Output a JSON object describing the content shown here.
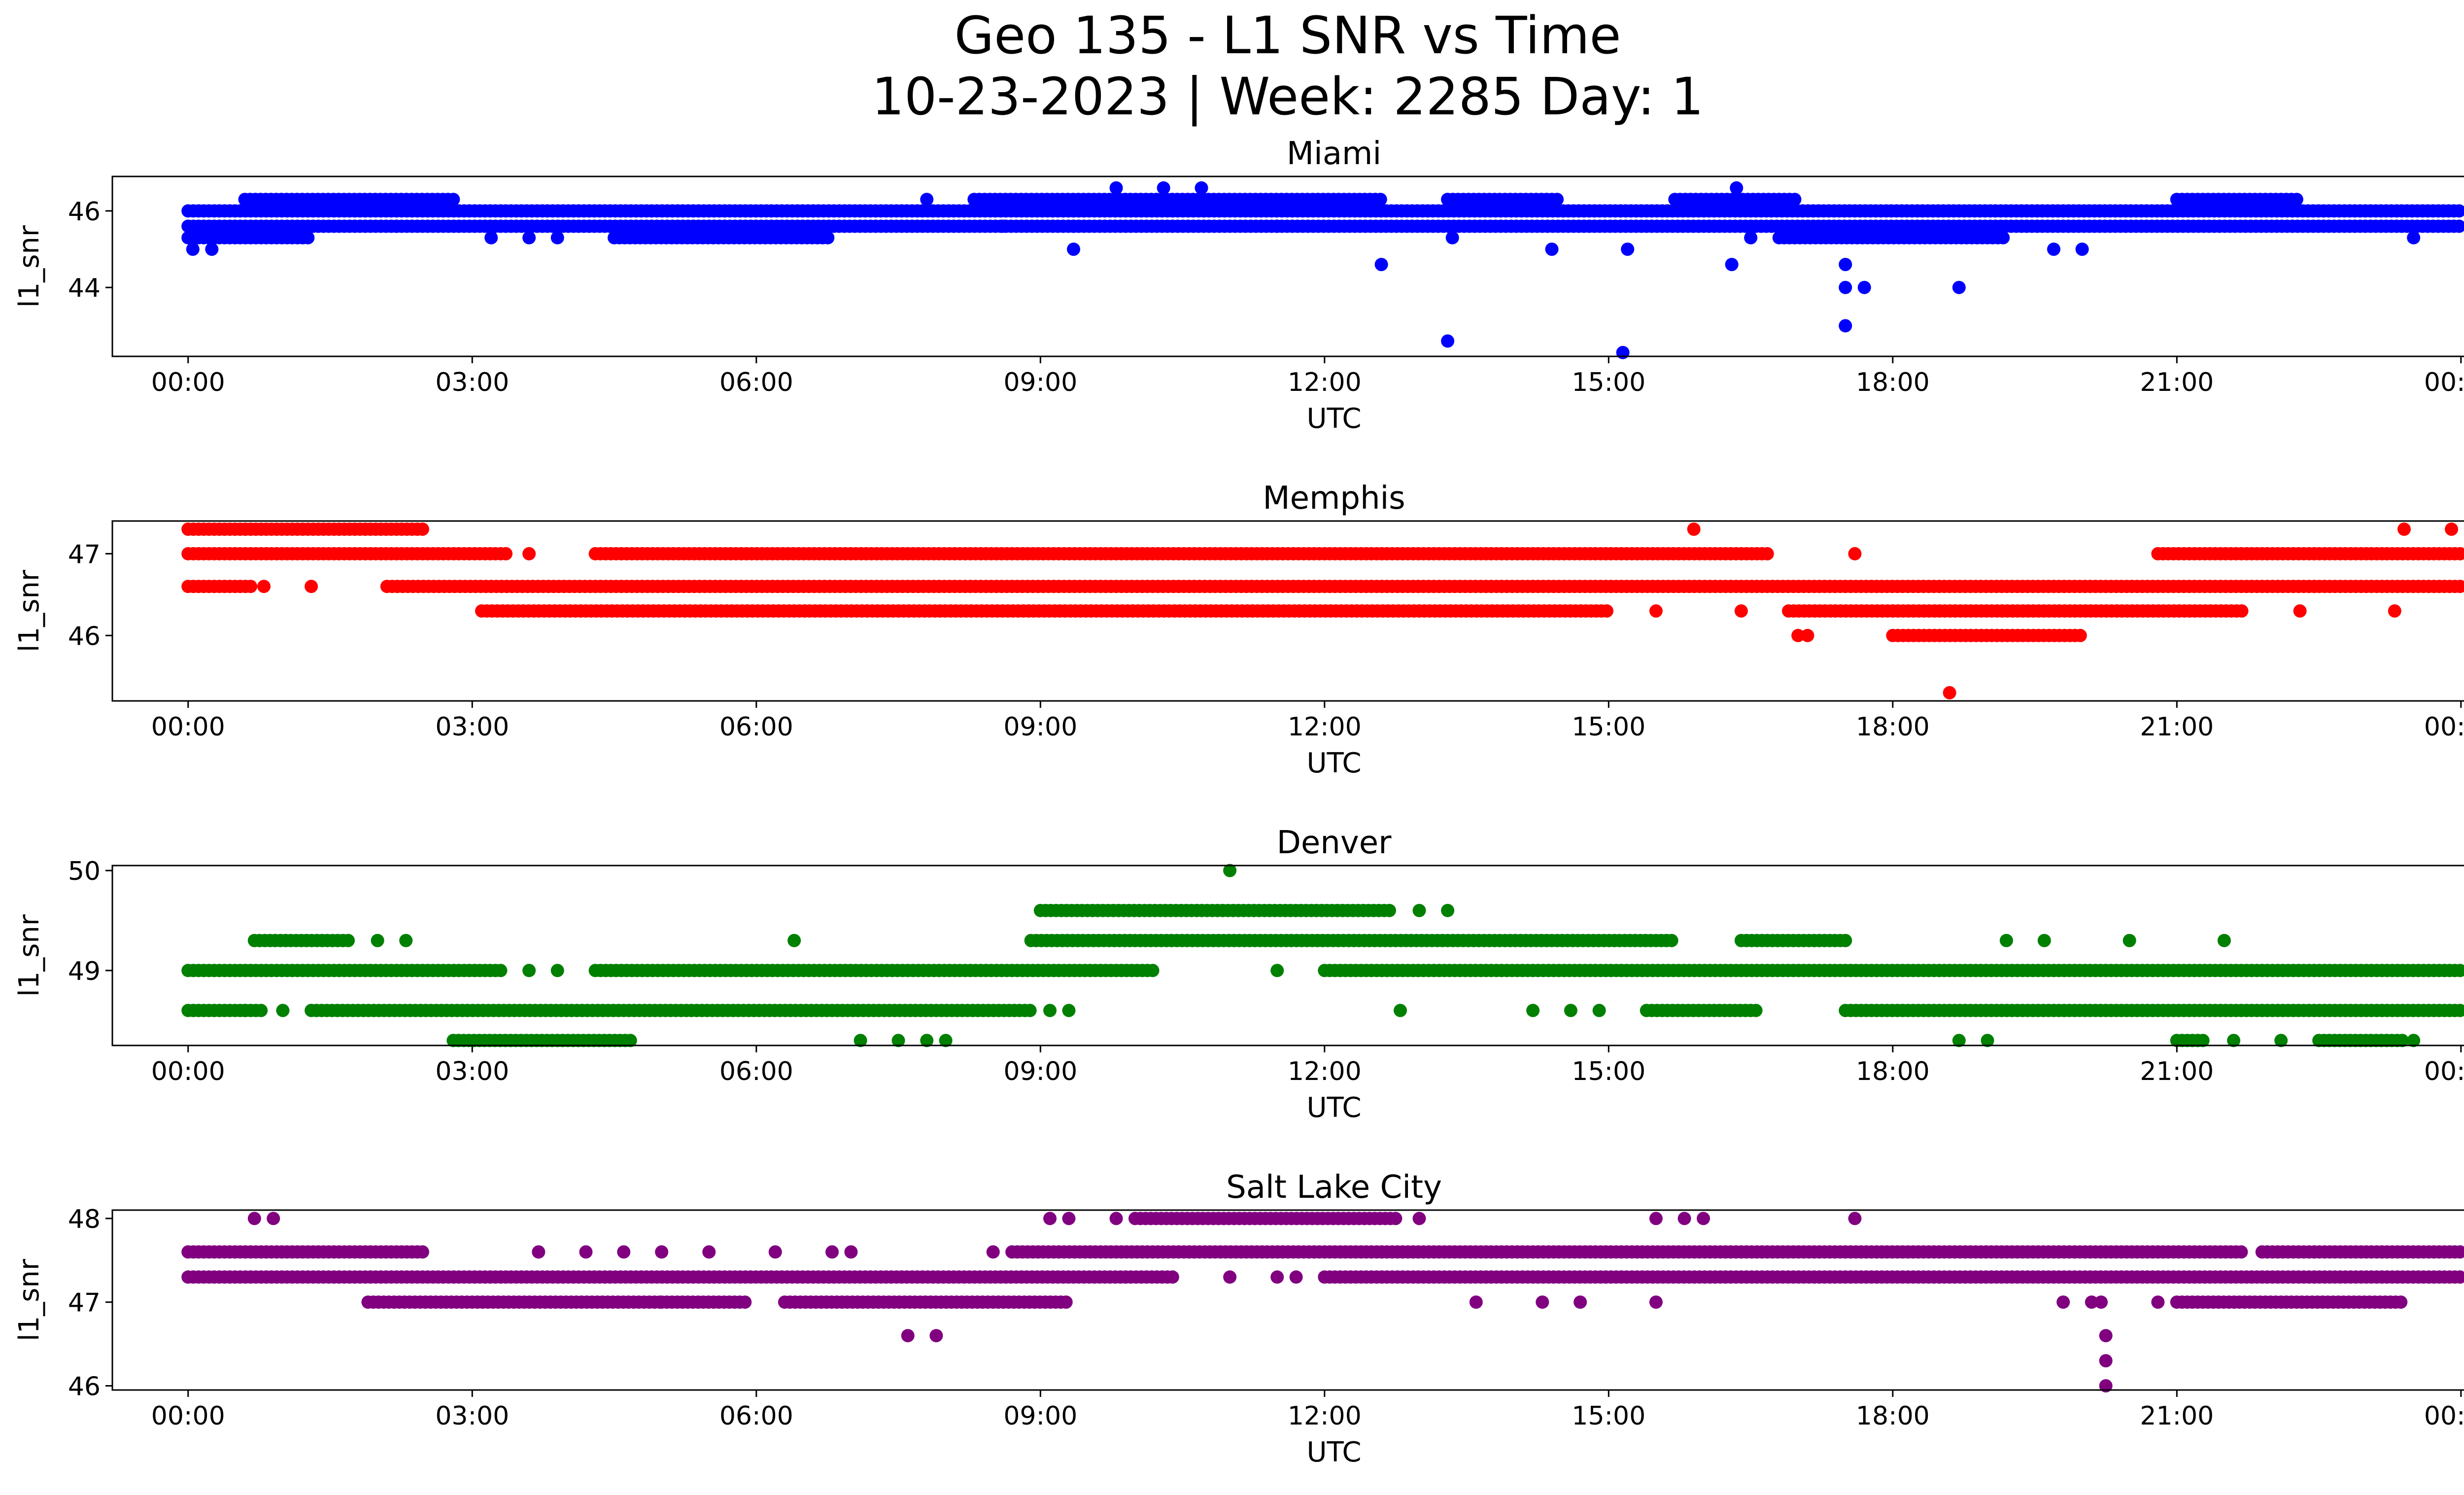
{
  "figure": {
    "title_line1": "Geo 135 - L1 SNR vs Time",
    "title_line2": "10-23-2023 | Week: 2285 Day: 1"
  },
  "chart_data": [
    {
      "type": "scatter",
      "title": "Miami",
      "xlabel": "UTC",
      "ylabel": "l1_snr",
      "color": "#0000ff",
      "xlim": [
        -0.8,
        25.0
      ],
      "ylim": [
        42.2,
        46.9
      ],
      "xticks": [
        0,
        3,
        6,
        9,
        12,
        15,
        18,
        21,
        24
      ],
      "xticklabels": [
        "00:00",
        "03:00",
        "06:00",
        "09:00",
        "12:00",
        "15:00",
        "18:00",
        "21:00",
        "00:00"
      ],
      "yticks": [
        44,
        46
      ],
      "bands": [
        {
          "y": 45.6,
          "from": 0,
          "to": 24
        },
        {
          "y": 46.0,
          "from": 0,
          "to": 24
        },
        {
          "y": 46.3,
          "from": 0.6,
          "to": 2.8
        },
        {
          "y": 46.3,
          "from": 8.3,
          "to": 12.6
        },
        {
          "y": 46.3,
          "from": 13.3,
          "to": 14.5
        },
        {
          "y": 46.3,
          "from": 15.7,
          "to": 17.0
        },
        {
          "y": 46.3,
          "from": 21.0,
          "to": 22.3
        },
        {
          "y": 45.3,
          "from": 0.0,
          "to": 1.3
        },
        {
          "y": 45.3,
          "from": 4.5,
          "to": 6.8
        },
        {
          "y": 45.3,
          "from": 16.8,
          "to": 19.2
        }
      ],
      "points": [
        [
          0.05,
          45.0
        ],
        [
          0.25,
          45.0
        ],
        [
          2.2,
          45.6
        ],
        [
          3.2,
          45.3
        ],
        [
          3.6,
          45.3
        ],
        [
          3.9,
          45.3
        ],
        [
          7.8,
          46.3
        ],
        [
          8.6,
          45.6
        ],
        [
          9.35,
          45.0
        ],
        [
          9.35,
          45.6
        ],
        [
          9.8,
          46.6
        ],
        [
          10.3,
          46.6
        ],
        [
          10.7,
          46.6
        ],
        [
          11.5,
          45.6
        ],
        [
          12.6,
          44.6
        ],
        [
          13.3,
          42.6
        ],
        [
          13.35,
          45.3
        ],
        [
          14.4,
          45.0
        ],
        [
          15.2,
          45.0
        ],
        [
          15.15,
          42.3
        ],
        [
          16.3,
          44.6
        ],
        [
          16.35,
          46.6
        ],
        [
          16.5,
          45.3
        ],
        [
          17.5,
          44.6
        ],
        [
          17.5,
          44.0
        ],
        [
          17.7,
          44.0
        ],
        [
          17.5,
          43.0
        ],
        [
          18.7,
          44.0
        ],
        [
          19.7,
          45.0
        ],
        [
          20.0,
          45.0
        ],
        [
          23.5,
          45.3
        ]
      ]
    },
    {
      "type": "scatter",
      "title": "Memphis",
      "xlabel": "UTC",
      "ylabel": "l1_snr",
      "color": "#ff0000",
      "xlim": [
        -0.8,
        25.0
      ],
      "ylim": [
        45.2,
        47.4
      ],
      "xticks": [
        0,
        3,
        6,
        9,
        12,
        15,
        18,
        21,
        24
      ],
      "xticklabels": [
        "00:00",
        "03:00",
        "06:00",
        "09:00",
        "12:00",
        "15:00",
        "18:00",
        "21:00",
        "00:00"
      ],
      "yticks": [
        46,
        47
      ],
      "bands": [
        {
          "y": 47.0,
          "from": 0,
          "to": 3.4
        },
        {
          "y": 47.0,
          "from": 4.3,
          "to": 16.7
        },
        {
          "y": 47.0,
          "from": 20.8,
          "to": 24
        },
        {
          "y": 47.3,
          "from": 0.0,
          "to": 2.5
        },
        {
          "y": 46.6,
          "from": 0,
          "to": 0.7
        },
        {
          "y": 46.6,
          "from": 2.1,
          "to": 24
        },
        {
          "y": 46.3,
          "from": 3.1,
          "to": 15.0
        },
        {
          "y": 46.3,
          "from": 16.9,
          "to": 21.7
        },
        {
          "y": 46.0,
          "from": 18.0,
          "to": 20.0
        }
      ],
      "points": [
        [
          0.8,
          46.6
        ],
        [
          1.3,
          46.6
        ],
        [
          3.6,
          47.0
        ],
        [
          15.9,
          47.3
        ],
        [
          17.1,
          46.0
        ],
        [
          17.0,
          46.0
        ],
        [
          17.6,
          47.0
        ],
        [
          16.4,
          46.3
        ],
        [
          15.5,
          46.3
        ],
        [
          18.6,
          45.3
        ],
        [
          22.3,
          46.3
        ],
        [
          23.4,
          47.3
        ],
        [
          23.9,
          47.3
        ],
        [
          23.3,
          46.3
        ]
      ]
    },
    {
      "type": "scatter",
      "title": "Denver",
      "xlabel": "UTC",
      "ylabel": "l1_snr",
      "color": "#008000",
      "xlim": [
        -0.8,
        25.0
      ],
      "ylim": [
        48.25,
        50.05
      ],
      "xticks": [
        0,
        3,
        6,
        9,
        12,
        15,
        18,
        21,
        24
      ],
      "xticklabels": [
        "00:00",
        "03:00",
        "06:00",
        "09:00",
        "12:00",
        "15:00",
        "18:00",
        "21:00",
        "00:00"
      ],
      "yticks": [
        49,
        50
      ],
      "bands": [
        {
          "y": 49.0,
          "from": 0,
          "to": 3.3
        },
        {
          "y": 49.0,
          "from": 4.3,
          "to": 10.2
        },
        {
          "y": 49.0,
          "from": 12.0,
          "to": 24
        },
        {
          "y": 48.6,
          "from": 0,
          "to": 0.8
        },
        {
          "y": 48.6,
          "from": 1.3,
          "to": 8.9
        },
        {
          "y": 48.6,
          "from": 15.4,
          "to": 16.6
        },
        {
          "y": 48.6,
          "from": 17.5,
          "to": 24
        },
        {
          "y": 49.3,
          "from": 0.7,
          "to": 1.7
        },
        {
          "y": 49.3,
          "from": 8.9,
          "to": 15.7
        },
        {
          "y": 49.3,
          "from": 16.4,
          "to": 17.5
        },
        {
          "y": 49.6,
          "from": 9.0,
          "to": 12.7
        },
        {
          "y": 48.3,
          "from": 2.8,
          "to": 4.7
        },
        {
          "y": 48.3,
          "from": 21.0,
          "to": 21.3
        },
        {
          "y": 48.3,
          "from": 22.5,
          "to": 23.4
        }
      ],
      "points": [
        [
          11.0,
          50.0
        ],
        [
          13.0,
          49.6
        ],
        [
          13.3,
          49.6
        ],
        [
          6.4,
          49.3
        ],
        [
          2.0,
          49.3
        ],
        [
          2.3,
          49.3
        ],
        [
          3.6,
          49.0
        ],
        [
          3.9,
          49.0
        ],
        [
          11.5,
          49.0
        ],
        [
          7.1,
          48.3
        ],
        [
          7.5,
          48.3
        ],
        [
          7.8,
          48.3
        ],
        [
          8.0,
          48.3
        ],
        [
          9.1,
          48.6
        ],
        [
          9.3,
          48.6
        ],
        [
          12.8,
          48.6
        ],
        [
          14.2,
          48.6
        ],
        [
          14.6,
          48.6
        ],
        [
          14.9,
          48.6
        ],
        [
          18.7,
          48.3
        ],
        [
          19.0,
          48.3
        ],
        [
          19.2,
          49.3
        ],
        [
          19.6,
          49.3
        ],
        [
          20.5,
          49.3
        ],
        [
          21.5,
          49.3
        ],
        [
          21.6,
          48.3
        ],
        [
          22.1,
          48.3
        ],
        [
          23.5,
          48.3
        ],
        [
          0.6,
          48.6
        ],
        [
          1.0,
          48.6
        ]
      ]
    },
    {
      "type": "scatter",
      "title": "Salt Lake City",
      "xlabel": "UTC",
      "ylabel": "l1_snr",
      "color": "#800080",
      "xlim": [
        -0.8,
        25.0
      ],
      "ylim": [
        45.95,
        48.1
      ],
      "xticks": [
        0,
        3,
        6,
        9,
        12,
        15,
        18,
        21,
        24
      ],
      "xticklabels": [
        "00:00",
        "03:00",
        "06:00",
        "09:00",
        "12:00",
        "15:00",
        "18:00",
        "21:00",
        "00:00"
      ],
      "yticks": [
        46,
        47,
        48
      ],
      "bands": [
        {
          "y": 47.6,
          "from": 0,
          "to": 2.5
        },
        {
          "y": 47.6,
          "from": 8.7,
          "to": 21.7
        },
        {
          "y": 47.6,
          "from": 21.9,
          "to": 24
        },
        {
          "y": 47.3,
          "from": 0,
          "to": 10.4
        },
        {
          "y": 47.3,
          "from": 12.0,
          "to": 24
        },
        {
          "y": 47.0,
          "from": 1.9,
          "to": 5.0
        },
        {
          "y": 47.0,
          "from": 5.0,
          "to": 5.9
        },
        {
          "y": 47.0,
          "from": 6.3,
          "to": 9.3
        },
        {
          "y": 47.0,
          "from": 21.0,
          "to": 23.4
        },
        {
          "y": 48.0,
          "from": 10.0,
          "to": 12.8
        }
      ],
      "points": [
        [
          0.7,
          48.0
        ],
        [
          0.9,
          48.0
        ],
        [
          3.7,
          47.6
        ],
        [
          4.2,
          47.6
        ],
        [
          4.6,
          47.6
        ],
        [
          5.0,
          47.6
        ],
        [
          5.5,
          47.6
        ],
        [
          6.2,
          47.6
        ],
        [
          6.8,
          47.6
        ],
        [
          7.0,
          47.6
        ],
        [
          7.6,
          46.6
        ],
        [
          7.9,
          46.6
        ],
        [
          8.5,
          47.6
        ],
        [
          9.1,
          48.0
        ],
        [
          9.3,
          48.0
        ],
        [
          9.8,
          48.0
        ],
        [
          11.0,
          47.3
        ],
        [
          11.5,
          47.3
        ],
        [
          11.7,
          47.3
        ],
        [
          13.0,
          48.0
        ],
        [
          13.6,
          47.0
        ],
        [
          14.3,
          47.0
        ],
        [
          14.7,
          47.0
        ],
        [
          15.5,
          47.0
        ],
        [
          15.5,
          48.0
        ],
        [
          15.8,
          48.0
        ],
        [
          16.0,
          48.0
        ],
        [
          17.6,
          48.0
        ],
        [
          19.8,
          47.0
        ],
        [
          20.1,
          47.0
        ],
        [
          20.2,
          47.0
        ],
        [
          20.25,
          46.6
        ],
        [
          20.25,
          46.3
        ],
        [
          20.25,
          46.0
        ],
        [
          20.8,
          47.0
        ]
      ]
    }
  ]
}
